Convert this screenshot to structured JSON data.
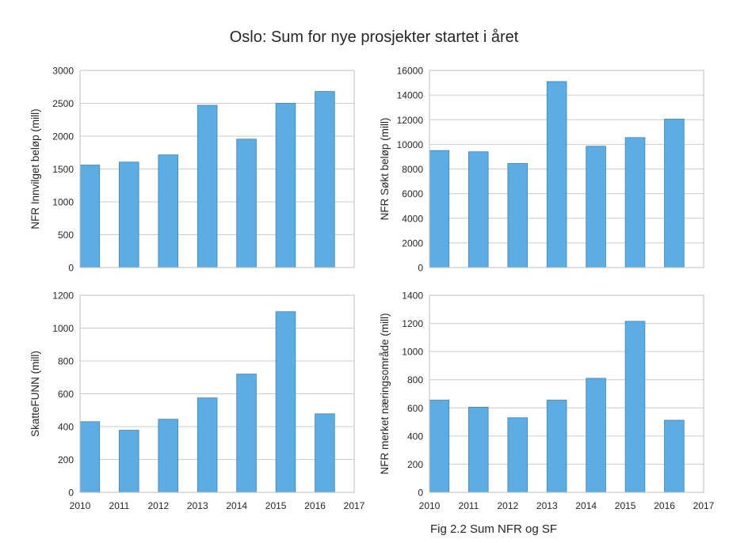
{
  "title": "Oslo: Sum for nye prosjekter startet i året",
  "caption": "Fig 2.2 Sum NFR og SF",
  "colors": {
    "bar_fill": "#5dade2",
    "bar_stroke": "#3a85b8",
    "grid": "#cccccc",
    "axis_frame": "#bfbfbf"
  },
  "chart_data": [
    {
      "type": "bar",
      "ylabel": "NFR Innvilget beløp (mill)",
      "x": [
        2010,
        2011,
        2012,
        2013,
        2014,
        2015,
        2016
      ],
      "values": [
        1560,
        1605,
        1715,
        2470,
        1955,
        2500,
        2680
      ],
      "xlim": [
        2010,
        2017
      ],
      "ylim": [
        0,
        3000
      ],
      "yticks": [
        0,
        500,
        1000,
        1500,
        2000,
        2500,
        3000
      ],
      "xticks": [],
      "grid": true
    },
    {
      "type": "bar",
      "ylabel": "NFR Søkt beløp (mill)",
      "x": [
        2010,
        2011,
        2012,
        2013,
        2014,
        2015,
        2016
      ],
      "values": [
        9500,
        9400,
        8450,
        15100,
        9850,
        10550,
        12050
      ],
      "xlim": [
        2010,
        2017
      ],
      "ylim": [
        0,
        16000
      ],
      "yticks": [
        0,
        2000,
        4000,
        6000,
        8000,
        10000,
        12000,
        14000,
        16000
      ],
      "xticks": [],
      "grid": true
    },
    {
      "type": "bar",
      "ylabel": "SkatteFUNN (mill)",
      "x": [
        2010,
        2011,
        2012,
        2013,
        2014,
        2015,
        2016
      ],
      "values": [
        430,
        378,
        445,
        575,
        720,
        1100,
        478
      ],
      "xlim": [
        2010,
        2017
      ],
      "ylim": [
        0,
        1200
      ],
      "yticks": [
        0,
        200,
        400,
        600,
        800,
        1000,
        1200
      ],
      "xticks": [
        2010,
        2011,
        2012,
        2013,
        2014,
        2015,
        2016,
        2017
      ],
      "grid": true
    },
    {
      "type": "bar",
      "ylabel": "NFR merket næringsområde (mill)",
      "x": [
        2010,
        2011,
        2012,
        2013,
        2014,
        2015,
        2016
      ],
      "values": [
        655,
        605,
        530,
        655,
        810,
        1215,
        512
      ],
      "xlim": [
        2010,
        2017
      ],
      "ylim": [
        0,
        1400
      ],
      "yticks": [
        0,
        200,
        400,
        600,
        800,
        1000,
        1200,
        1400
      ],
      "xticks": [
        2010,
        2011,
        2012,
        2013,
        2014,
        2015,
        2016,
        2017
      ],
      "grid": true
    }
  ]
}
